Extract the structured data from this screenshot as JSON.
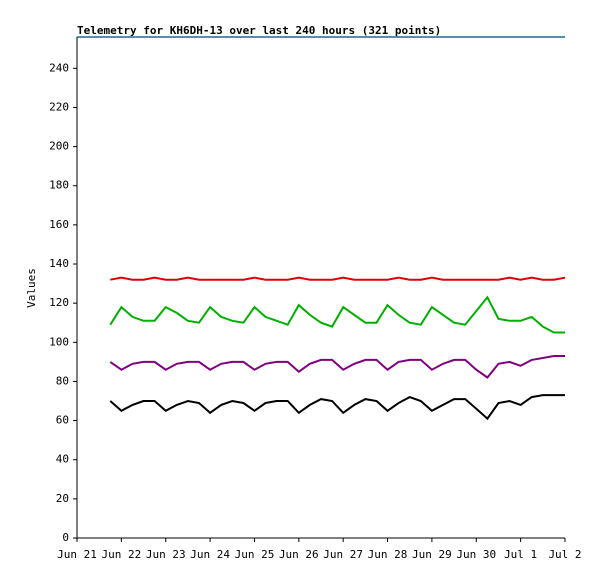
{
  "chart_data": {
    "type": "line",
    "title": "Telemetry for KH6DH-13 over last 240 hours (321 points)",
    "y_label": "Values",
    "x": [
      0.75,
      1,
      1.25,
      1.5,
      1.75,
      2,
      2.25,
      2.5,
      2.75,
      3,
      3.25,
      3.5,
      3.75,
      4,
      4.25,
      4.5,
      4.75,
      5,
      5.25,
      5.5,
      5.75,
      6,
      6.25,
      6.5,
      6.75,
      7,
      7.25,
      7.5,
      7.75,
      8,
      8.25,
      8.5,
      8.75,
      9,
      9.25,
      9.5,
      9.75,
      10,
      10.25,
      10.5,
      10.75,
      11
    ],
    "series": [
      {
        "color": "#e00000",
        "values": [
          132,
          133,
          132,
          132,
          133,
          132,
          132,
          133,
          132,
          132,
          132,
          132,
          132,
          133,
          132,
          132,
          132,
          133,
          132,
          132,
          132,
          133,
          132,
          132,
          132,
          132,
          133,
          132,
          132,
          133,
          132,
          132,
          132,
          132,
          132,
          132,
          133,
          132,
          133,
          132,
          132,
          133
        ]
      },
      {
        "color": "#00b000",
        "values": [
          109,
          118,
          113,
          111,
          111,
          118,
          115,
          111,
          110,
          118,
          113,
          111,
          110,
          118,
          113,
          111,
          109,
          119,
          114,
          110,
          108,
          118,
          114,
          110,
          110,
          119,
          114,
          110,
          109,
          118,
          114,
          110,
          109,
          116,
          123,
          112,
          111,
          111,
          113,
          108,
          105,
          105
        ]
      },
      {
        "color": "#800080",
        "values": [
          90,
          86,
          89,
          90,
          90,
          86,
          89,
          90,
          90,
          86,
          89,
          90,
          90,
          86,
          89,
          90,
          90,
          85,
          89,
          91,
          91,
          86,
          89,
          91,
          91,
          86,
          90,
          91,
          91,
          86,
          89,
          91,
          91,
          86,
          82,
          89,
          90,
          88,
          91,
          92,
          93,
          93
        ]
      },
      {
        "color": "#000000",
        "values": [
          70,
          65,
          68,
          70,
          70,
          65,
          68,
          70,
          69,
          64,
          68,
          70,
          69,
          65,
          69,
          70,
          70,
          64,
          68,
          71,
          70,
          64,
          68,
          71,
          70,
          65,
          69,
          72,
          70,
          65,
          68,
          71,
          71,
          66,
          61,
          69,
          70,
          68,
          72,
          73,
          73,
          73
        ]
      }
    ],
    "xlim": [
      0,
      11
    ],
    "ylim": [
      0,
      256
    ],
    "xticks": [
      {
        "value": 0,
        "label": "Jun 21"
      },
      {
        "value": 1,
        "label": "Jun 22"
      },
      {
        "value": 2,
        "label": "Jun 23"
      },
      {
        "value": 3,
        "label": "Jun 24"
      },
      {
        "value": 4,
        "label": "Jun 25"
      },
      {
        "value": 5,
        "label": "Jun 26"
      },
      {
        "value": 6,
        "label": "Jun 27"
      },
      {
        "value": 7,
        "label": "Jun 28"
      },
      {
        "value": 8,
        "label": "Jun 29"
      },
      {
        "value": 9,
        "label": "Jun 30"
      },
      {
        "value": 10,
        "label": "Jul 1"
      },
      {
        "value": 11,
        "label": "Jul 2"
      }
    ],
    "yticks": [
      0,
      20,
      40,
      60,
      80,
      100,
      120,
      140,
      160,
      180,
      200,
      220,
      240
    ]
  }
}
